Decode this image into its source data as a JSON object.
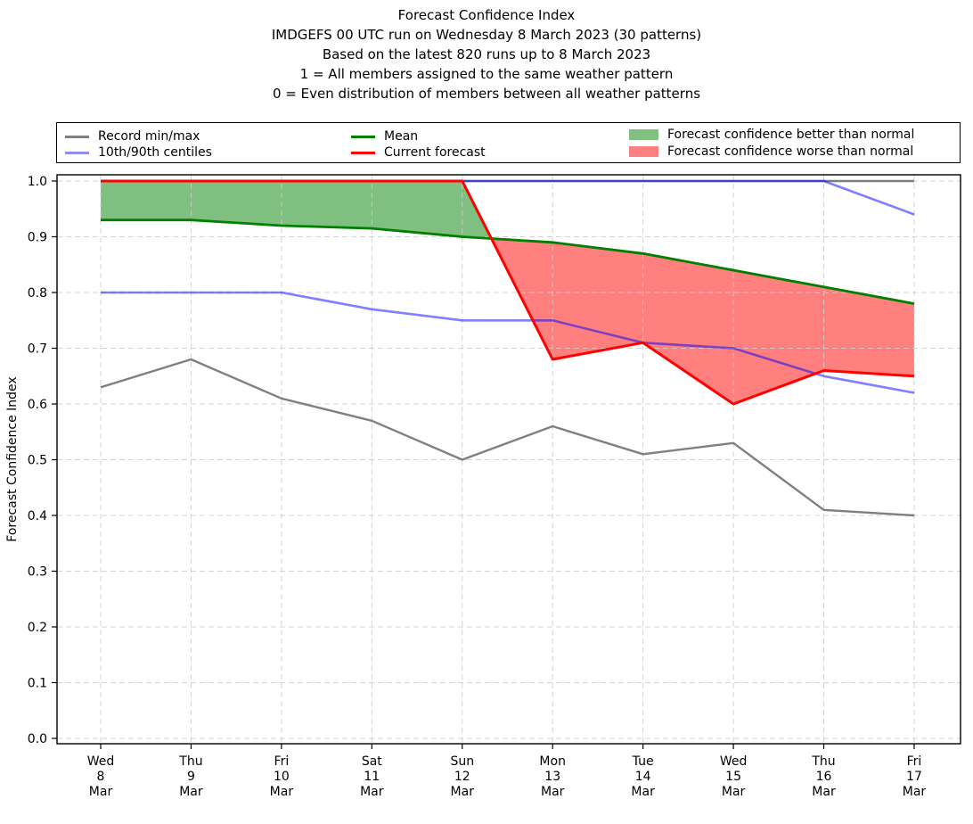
{
  "title": {
    "lines": [
      "Forecast Confidence Index",
      "IMDGEFS 00 UTC run on Wednesday 8 March 2023 (30 patterns)",
      "Based on the latest 820 runs up to 8 March 2023",
      "1 = All members assigned to the same weather pattern",
      "0 = Even distribution of members between all weather patterns"
    ]
  },
  "legend": {
    "items": [
      {
        "label": "Record min/max",
        "type": "line",
        "color": "#808080"
      },
      {
        "label": "10th/90th centiles",
        "type": "line",
        "color": "#8d8df7"
      },
      {
        "label": "Mean",
        "type": "line",
        "color": "#008000"
      },
      {
        "label": "Current forecast",
        "type": "line",
        "color": "#ff0000"
      },
      {
        "label": "Forecast confidence better than normal",
        "type": "patch",
        "color": "#80c080"
      },
      {
        "label": "Forecast confidence worse than normal",
        "type": "patch",
        "color": "#ff8080"
      }
    ]
  },
  "chart_data": {
    "type": "line",
    "title": "Forecast Confidence Index",
    "xlabel": "",
    "ylabel": "Forecast Confidence Index",
    "ylim": [
      0.0,
      1.0
    ],
    "yticks": [
      0.0,
      0.1,
      0.2,
      0.3,
      0.4,
      0.5,
      0.6,
      0.7,
      0.8,
      0.9,
      1.0
    ],
    "grid": true,
    "legend_position": "top",
    "categories": [
      {
        "weekday": "Wed",
        "day": "8",
        "month": "Mar"
      },
      {
        "weekday": "Thu",
        "day": "9",
        "month": "Mar"
      },
      {
        "weekday": "Fri",
        "day": "10",
        "month": "Mar"
      },
      {
        "weekday": "Sat",
        "day": "11",
        "month": "Mar"
      },
      {
        "weekday": "Sun",
        "day": "12",
        "month": "Mar"
      },
      {
        "weekday": "Mon",
        "day": "13",
        "month": "Mar"
      },
      {
        "weekday": "Tue",
        "day": "14",
        "month": "Mar"
      },
      {
        "weekday": "Wed",
        "day": "15",
        "month": "Mar"
      },
      {
        "weekday": "Thu",
        "day": "16",
        "month": "Mar"
      },
      {
        "weekday": "Fri",
        "day": "17",
        "month": "Mar"
      }
    ],
    "series": [
      {
        "name": "Record max",
        "color": "#808080",
        "opacity": 1.0,
        "width": 2.4,
        "values": [
          1.0,
          1.0,
          1.0,
          1.0,
          1.0,
          1.0,
          1.0,
          1.0,
          1.0,
          1.0
        ]
      },
      {
        "name": "Record min",
        "color": "#808080",
        "opacity": 1.0,
        "width": 2.4,
        "values": [
          0.63,
          0.68,
          0.61,
          0.57,
          0.5,
          0.56,
          0.51,
          0.53,
          0.41,
          0.4
        ]
      },
      {
        "name": "90th centile",
        "color": "#0000ff",
        "opacity": 0.5,
        "width": 2.6,
        "values": [
          1.0,
          1.0,
          1.0,
          1.0,
          1.0,
          1.0,
          1.0,
          1.0,
          1.0,
          0.94
        ]
      },
      {
        "name": "10th centile",
        "color": "#0000ff",
        "opacity": 0.5,
        "width": 2.6,
        "values": [
          0.8,
          0.8,
          0.8,
          0.77,
          0.75,
          0.75,
          0.71,
          0.7,
          0.65,
          0.62
        ]
      },
      {
        "name": "Mean",
        "color": "#008000",
        "opacity": 1.0,
        "width": 2.8,
        "values": [
          0.93,
          0.93,
          0.92,
          0.915,
          0.9,
          0.89,
          0.87,
          0.84,
          0.81,
          0.78
        ]
      },
      {
        "name": "Current forecast",
        "color": "#ff0000",
        "opacity": 1.0,
        "width": 3.0,
        "values": [
          1.0,
          1.0,
          1.0,
          1.0,
          1.0,
          0.68,
          0.71,
          0.6,
          0.66,
          0.65
        ]
      }
    ],
    "fills": {
      "between": [
        "Current forecast",
        "Mean"
      ],
      "better_color": "#008000",
      "worse_color": "#ff0000",
      "opacity": 0.5,
      "better_meaning": "Forecast confidence better than normal",
      "worse_meaning": "Forecast confidence worse than normal"
    }
  }
}
